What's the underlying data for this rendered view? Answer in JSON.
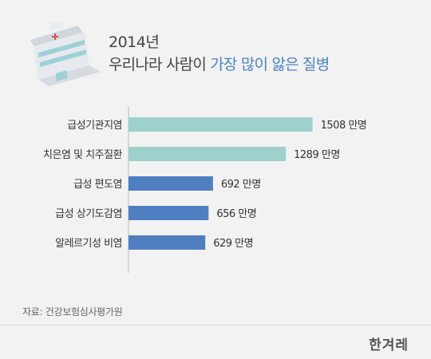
{
  "title": {
    "line1": "2014년",
    "line2_prefix": "우리나라 사람이 ",
    "line2_highlight": "가장 많이 앓은 질병"
  },
  "source": "자료: 건강보험심사평가원",
  "logo": "한겨레",
  "colors": {
    "teal": "#9ed0cc",
    "blue": "#4f7fc0",
    "axis": "#bbbbbb",
    "label": "#333333",
    "value": "#333333"
  },
  "chart_data": {
    "type": "bar",
    "orientation": "horizontal",
    "unit": "만명",
    "xlim": [
      0,
      1700
    ],
    "categories": [
      "급성기관지염",
      "치은염 및 치주질환",
      "급성 편도염",
      "급성 상기도감염",
      "알레르기성 비염"
    ],
    "values": [
      1508,
      1289,
      692,
      656,
      629
    ],
    "value_labels": [
      "1508 만명",
      "1289 만명",
      "692 만명",
      "656 만명",
      "629 만명"
    ],
    "bar_colors": [
      "#9ed0cc",
      "#9ed0cc",
      "#4f7fc0",
      "#4f7fc0",
      "#4f7fc0"
    ]
  }
}
